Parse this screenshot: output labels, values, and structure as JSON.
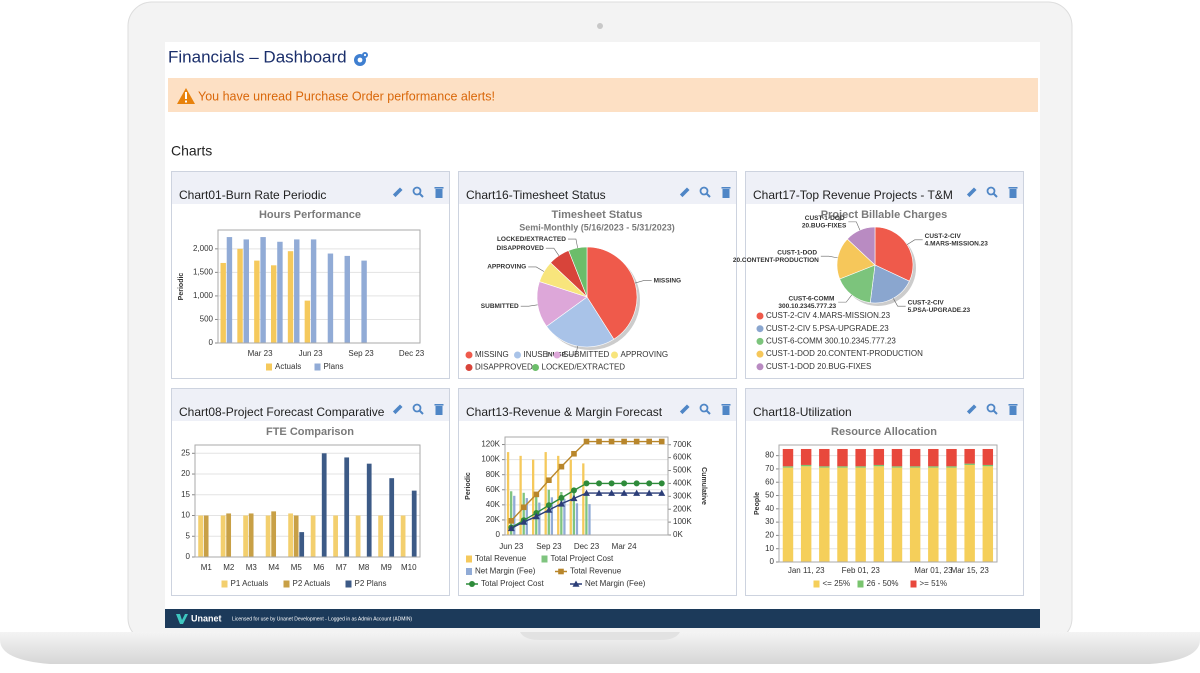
{
  "header": {
    "title": "Financials – Dashboard"
  },
  "alert": {
    "text": "You have unread Purchase Order performance alerts!"
  },
  "section": {
    "title": "Charts"
  },
  "panels": [
    {
      "title": "Chart01-Burn Rate Periodic"
    },
    {
      "title": "Chart16-Timesheet Status"
    },
    {
      "title": "Chart17-Top Revenue Projects - T&M"
    },
    {
      "title": "Chart08-Project Forecast Comparative"
    },
    {
      "title": "Chart13-Revenue & Margin Forecast"
    },
    {
      "title": "Chart18-Utilization"
    }
  ],
  "footer": {
    "logo": "Unanet",
    "text": "Licensed for use by Unanet Development - Logged in as Admin Account (ADMIN)"
  },
  "chart_data": [
    {
      "type": "bar",
      "title": "Hours Performance",
      "y_label": "Periodic",
      "categories": [
        null,
        null,
        "Mar 23",
        null,
        null,
        "Jun 23",
        null,
        null,
        "Sep 23",
        null,
        null,
        "Dec 23"
      ],
      "series": [
        {
          "name": "Actuals",
          "color": "#f5c95c",
          "values": [
            1700,
            2000,
            1750,
            1650,
            1950,
            900,
            null,
            null,
            null,
            null,
            null,
            null
          ]
        },
        {
          "name": "Plans",
          "color": "#91abd6",
          "values": [
            2250,
            2200,
            2250,
            2150,
            2200,
            2200,
            1900,
            1850,
            1750,
            null,
            null,
            null
          ]
        }
      ],
      "ylim": [
        0,
        2400
      ],
      "yticks": [
        0,
        500,
        {
          "value": 1000,
          "label": "1,000"
        },
        {
          "value": 1500,
          "label": "1,500"
        },
        {
          "value": 2000,
          "label": "2,000"
        }
      ],
      "grid": true
    },
    {
      "type": "pie",
      "title": "Timesheet Status",
      "subtitle": "Semi-Monthly (5/16/2023 - 5/31/2023)",
      "categories": [
        "MISSING",
        "INUSE",
        "SUBMITTED",
        "APPROVING",
        "DISAPPROVED",
        "LOCKED/EXTRACTED"
      ],
      "values": [
        41,
        24,
        15,
        7,
        7,
        6
      ],
      "colors": [
        "#ef5a4b",
        "#a9c3e8",
        "#dda7d9",
        "#f8e57c",
        "#d8443a",
        "#6cbd6a"
      ]
    },
    {
      "type": "pie",
      "title": "Project Billable Charges",
      "categories": [
        "CUST-2-CIV 4.MARS-MISSION.23",
        "CUST-2-CIV 5.PSA-UPGRADE.23",
        "CUST-6-COMM 300.10.2345.777.23",
        "CUST-1-DOD 20.CONTENT-PRODUCTION",
        "CUST-1-DOD 20.BUG-FIXES"
      ],
      "values": [
        32,
        20,
        17,
        18,
        13
      ],
      "colors": [
        "#ef5a4b",
        "#8aa6cf",
        "#7cc47c",
        "#f6c75a",
        "#b98bc2"
      ]
    },
    {
      "type": "bar",
      "title": "FTE Comparison",
      "categories": [
        "M1",
        "M2",
        "M3",
        "M4",
        "M5",
        "M6",
        "M7",
        "M8",
        "M9",
        "M10"
      ],
      "series": [
        {
          "name": "P1 Actuals",
          "color": "#f3cf6e",
          "values": [
            10,
            10,
            10,
            10,
            10.5,
            10,
            10,
            10,
            10,
            10
          ]
        },
        {
          "name": "P2 Actuals",
          "color": "#c8a046",
          "values": [
            10,
            10.5,
            10.5,
            11,
            10,
            null,
            null,
            null,
            null,
            null
          ]
        },
        {
          "name": "P2 Plans",
          "color": "#3c5a86",
          "values": [
            null,
            null,
            null,
            null,
            6,
            25,
            24,
            22.5,
            19,
            16
          ]
        }
      ],
      "ylim": [
        0,
        27
      ],
      "yticks": [
        0,
        5,
        10,
        15,
        20,
        25
      ],
      "grid": true
    },
    {
      "type": "combo",
      "y_label": "Periodic",
      "y2_label": "Cumulative",
      "categories": [
        "Jun 23",
        null,
        null,
        "Sep 23",
        null,
        null,
        "Dec 23",
        null,
        null,
        "Mar 24",
        null,
        null,
        null
      ],
      "series": [
        {
          "name": "Total Revenue",
          "color": "#f5c95c",
          "mark": "bar",
          "values": [
            110000,
            105000,
            100000,
            110000,
            105000,
            100000,
            95000,
            null,
            null,
            null,
            null,
            null,
            null
          ]
        },
        {
          "name": "Total Project Cost",
          "color": "#7fc47f",
          "mark": "bar",
          "values": [
            58000,
            56000,
            57000,
            60000,
            57000,
            58000,
            54000,
            null,
            null,
            null,
            null,
            null,
            null
          ]
        },
        {
          "name": "Net Margin (Fee)",
          "color": "#91abd6",
          "mark": "bar",
          "values": [
            52000,
            49000,
            43000,
            50000,
            48000,
            42000,
            41000,
            null,
            null,
            null,
            null,
            null,
            null
          ]
        },
        {
          "name": "Total Revenue",
          "color": "#b8862b",
          "mark": "line",
          "marker": "square",
          "axis": "y2",
          "values": [
            110000,
            215000,
            315000,
            425000,
            530000,
            630000,
            725000,
            725000,
            725000,
            725000,
            725000,
            725000,
            725000
          ]
        },
        {
          "name": "Total Project Cost",
          "color": "#2e8b3a",
          "mark": "line",
          "marker": "circle",
          "axis": "y2",
          "values": [
            58000,
            114000,
            171000,
            231000,
            288000,
            346000,
            400000,
            400000,
            400000,
            400000,
            400000,
            400000,
            400000
          ]
        },
        {
          "name": "Net Margin (Fee)",
          "color": "#2c3e78",
          "mark": "line",
          "marker": "triangle",
          "axis": "y2",
          "values": [
            52000,
            101000,
            144000,
            194000,
            242000,
            284000,
            325000,
            325000,
            325000,
            325000,
            325000,
            325000,
            325000
          ]
        }
      ],
      "ylim": [
        0,
        130000
      ],
      "yticks": [
        0,
        {
          "value": 20000,
          "label": "20K"
        },
        {
          "value": 40000,
          "label": "40K"
        },
        {
          "value": 60000,
          "label": "60K"
        },
        {
          "value": 80000,
          "label": "80K"
        },
        {
          "value": 100000,
          "label": "100K"
        },
        {
          "value": 120000,
          "label": "120K"
        }
      ],
      "y2lim": [
        0,
        760000
      ],
      "y2ticks": [
        {
          "value": 0,
          "label": "0K"
        },
        {
          "value": 100000,
          "label": "100K"
        },
        {
          "value": 200000,
          "label": "200K"
        },
        {
          "value": 300000,
          "label": "300K"
        },
        {
          "value": 400000,
          "label": "400K"
        },
        {
          "value": 500000,
          "label": "500K"
        },
        {
          "value": 600000,
          "label": "600K"
        },
        {
          "value": 700000,
          "label": "700K"
        }
      ],
      "grid": true
    },
    {
      "type": "stacked_bar",
      "title": "Resource Allocation",
      "y_label": "People",
      "categories": [
        null,
        "Jan 11, 23",
        null,
        null,
        "Feb 01, 23",
        null,
        null,
        null,
        "Mar 01, 23",
        null,
        "Mar 15, 23",
        null
      ],
      "series": [
        {
          "name": "<= 25%",
          "color": "#f5cf5a",
          "values": [
            71,
            72,
            71,
            71,
            71,
            72,
            71,
            71,
            71,
            71,
            73,
            72
          ]
        },
        {
          "name": "26 - 50%",
          "color": "#79c46e",
          "values": [
            1,
            1,
            1,
            1,
            1,
            1,
            1,
            1,
            1,
            1,
            1,
            1
          ]
        },
        {
          "name": ">= 51%",
          "color": "#e8483c",
          "values": [
            13,
            12,
            13,
            13,
            13,
            12,
            13,
            13,
            13,
            13,
            11,
            12
          ]
        }
      ],
      "ylim": [
        0,
        88
      ],
      "yticks": [
        0,
        10,
        20,
        30,
        40,
        50,
        60,
        70,
        80
      ],
      "grid": true
    }
  ]
}
